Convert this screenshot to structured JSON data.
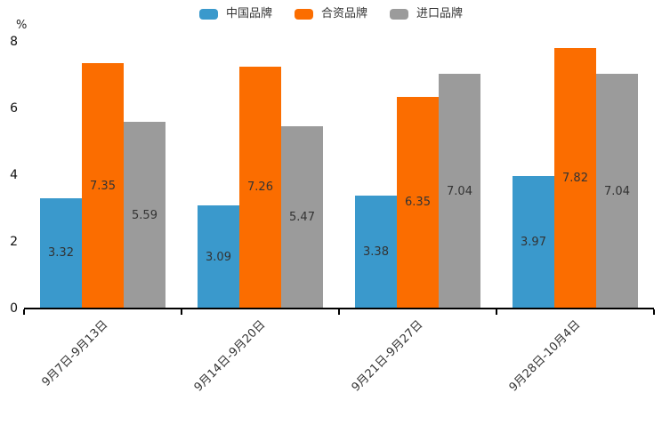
{
  "chart_data": {
    "type": "bar",
    "title": "",
    "xlabel": "",
    "ylabel": "%",
    "ylim": [
      0,
      8
    ],
    "yticks": [
      0,
      2,
      4,
      6,
      8
    ],
    "grid": false,
    "legend_position": "top",
    "value_labels": true,
    "categories": [
      "9月7日-9月13日",
      "9月14日-9月20日",
      "9月21日-9月27日",
      "9月28日-10月4日"
    ],
    "series": [
      {
        "name": "中国品牌",
        "color": "#3A99CC",
        "values": [
          3.32,
          3.09,
          3.38,
          3.97
        ]
      },
      {
        "name": "合资品牌",
        "color": "#FB6D00",
        "values": [
          7.35,
          7.26,
          6.35,
          7.82
        ]
      },
      {
        "name": "进口品牌",
        "color": "#9B9B9B",
        "values": [
          5.59,
          5.47,
          7.04,
          7.04
        ]
      }
    ],
    "colors": {
      "background": "#ffffff",
      "axis": "#000000",
      "tick_label": "#111111",
      "value_label": "#333333"
    }
  }
}
